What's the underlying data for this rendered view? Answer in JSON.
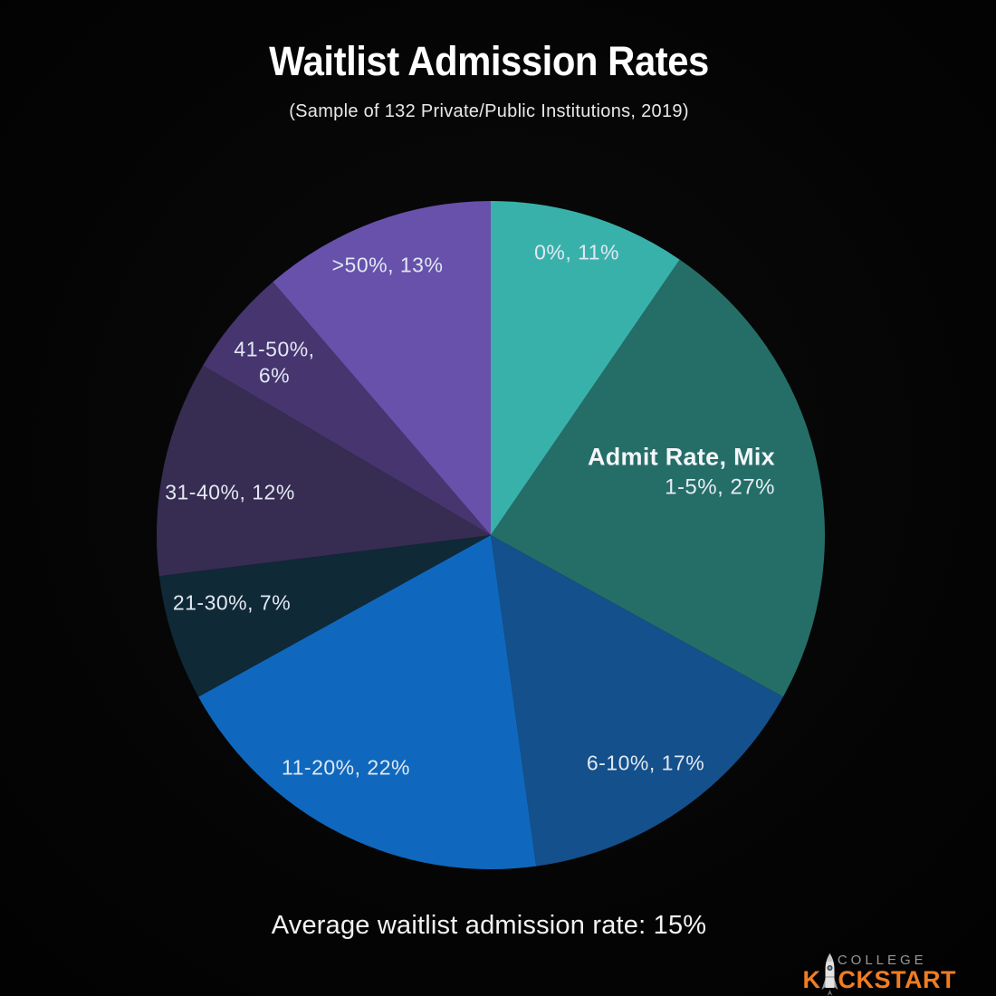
{
  "chart_data": {
    "type": "pie",
    "title": "Waitlist Admission Rates",
    "subtitle": "(Sample of 132 Private/Public Institutions, 2019)",
    "series_label": "Admit Rate, Mix",
    "start": "top",
    "direction": "clockwise",
    "background": "#050505",
    "label_color": "#e2e8f2",
    "slices": [
      {
        "range": "0%",
        "pct": 11,
        "label": "0%, 11%",
        "color": "#39b1ab"
      },
      {
        "range": "1-5%",
        "pct": 27,
        "label": "1-5%, 27%",
        "color": "#256e67"
      },
      {
        "range": "6-10%",
        "pct": 17,
        "label": "6-10%, 17%",
        "color": "#14508b"
      },
      {
        "range": "11-20%",
        "pct": 22,
        "label": "11-20%, 22%",
        "color": "#0f68bd"
      },
      {
        "range": "21-30%",
        "pct": 7,
        "label": "21-30%, 7%",
        "color": "#0f2936"
      },
      {
        "range": "31-40%",
        "pct": 12,
        "label": "31-40%, 12%",
        "color": "#372c51"
      },
      {
        "range": "41-50%",
        "pct": 6,
        "label": "41-50%, 6%",
        "color": "#46356f"
      },
      {
        "range": ">50%",
        "pct": 13,
        "label": ">50%, 13%",
        "color": "#6751ab"
      }
    ],
    "footnote": "Average waitlist admission rate: 15%"
  },
  "logo": {
    "college": "COLLEGE",
    "kickstart_prefix": "K",
    "kickstart_suffix": "CKSTART",
    "college_color": "#989898",
    "kickstart_color": "#f07d23"
  }
}
